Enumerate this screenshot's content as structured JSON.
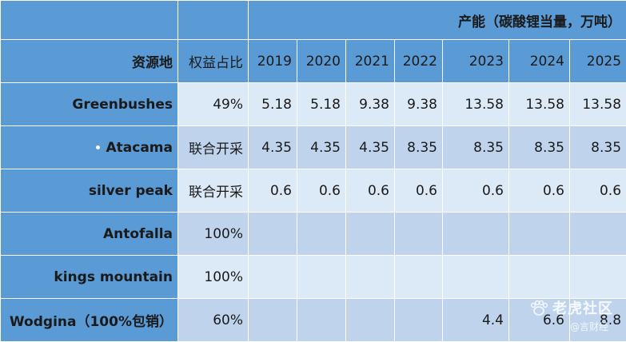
{
  "header": {
    "title": "产能（碳酸锂当量，万吨）",
    "resource_col": "资源地",
    "share_col": "权益占比",
    "years": [
      "2019",
      "2020",
      "2021",
      "2022",
      "2023",
      "2024",
      "2025"
    ]
  },
  "rows": [
    {
      "name": "Greenbushes",
      "share": "49%",
      "values": [
        "5.18",
        "5.18",
        "9.38",
        "9.38",
        "13.58",
        "13.58",
        "13.58"
      ]
    },
    {
      "name": "Atacama",
      "share": "联合开采",
      "values": [
        "4.35",
        "4.35",
        "4.35",
        "8.35",
        "8.35",
        "8.35",
        "8.35"
      ]
    },
    {
      "name": "silver peak",
      "share": "联合开采",
      "values": [
        "0.6",
        "0.6",
        "0.6",
        "0.6",
        "0.6",
        "0.6",
        "0.6"
      ]
    },
    {
      "name": "Antofalla",
      "share": "100%",
      "values": [
        "",
        "",
        "",
        "",
        "",
        "",
        ""
      ]
    },
    {
      "name": "kings mountain",
      "share": "100%",
      "values": [
        "",
        "",
        "",
        "",
        "",
        "",
        ""
      ]
    },
    {
      "name": "Wodgina（100%包销）",
      "share": "60%",
      "values": [
        "",
        "",
        "",
        "",
        "4.4",
        "6.6",
        "8.8"
      ]
    }
  ],
  "watermark": {
    "main": "老虎社区",
    "sub": "@言财经",
    "icon": "tiger-paw-icon"
  },
  "colors": {
    "header_bg": "#5b9bd5",
    "row_light": "#dce9f6",
    "row_dark": "#bfd4ec"
  }
}
